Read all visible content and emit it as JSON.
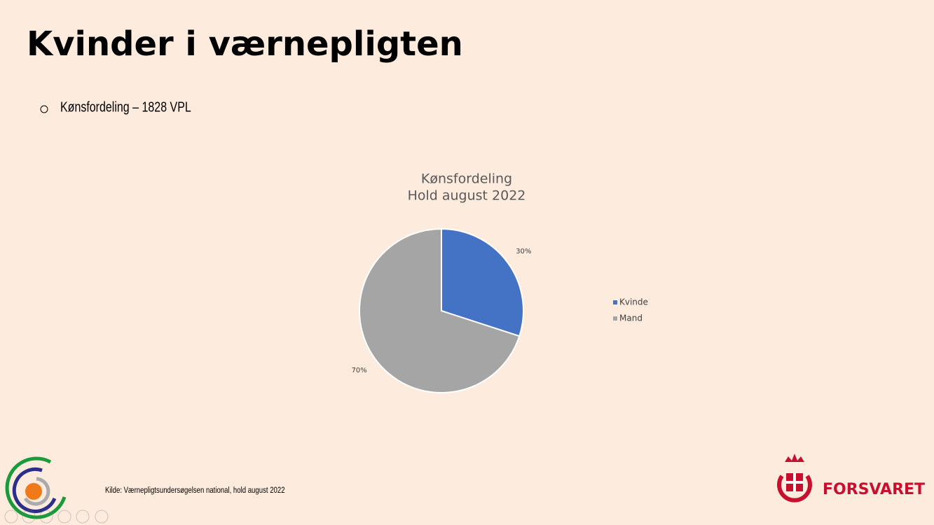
{
  "title": "Kvinder i værnepligten",
  "bullet": "Kønsfordeling – 1828 VPL",
  "source": "Kilde: Værnepligtsundersøgelsen national, hold august 2022",
  "logo_text": "FORSVARET",
  "chart_data": {
    "type": "pie",
    "title": "Kønsfordeling",
    "subtitle": "Hold august 2022",
    "categories": [
      "Kvinde",
      "Mand"
    ],
    "values": [
      30,
      70
    ],
    "value_labels": [
      "30%",
      "70%"
    ],
    "colors": [
      "#4472c4",
      "#a5a5a5"
    ],
    "legend": "right"
  }
}
